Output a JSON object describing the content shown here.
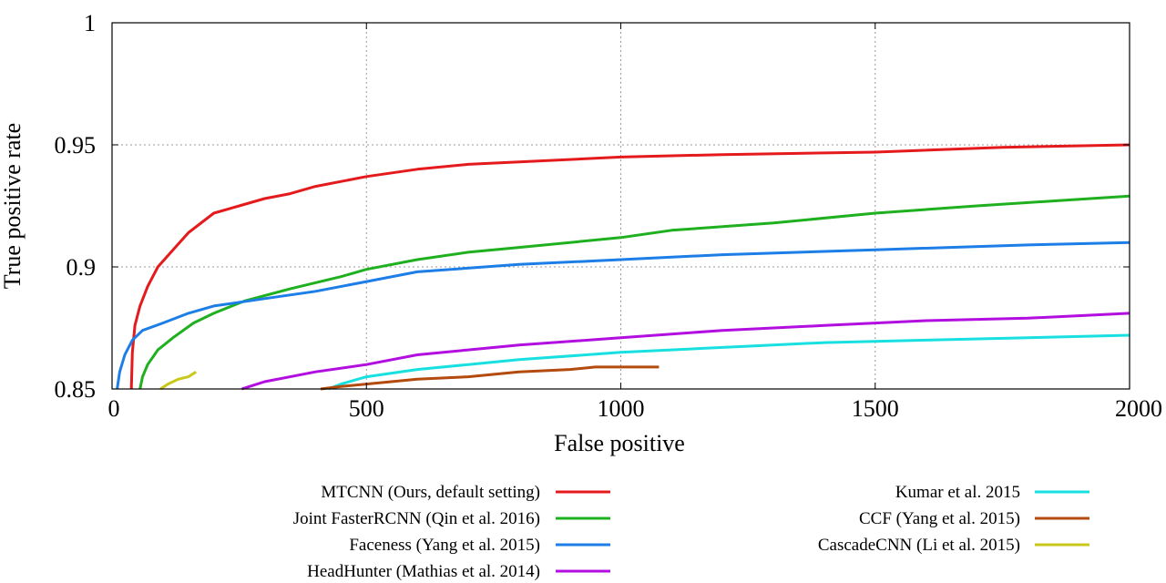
{
  "chart_data": {
    "type": "line",
    "title": "",
    "xlabel": "False positive",
    "ylabel": "True positive rate",
    "xlim": [
      0,
      2000
    ],
    "ylim": [
      0.85,
      1
    ],
    "xticks": [
      0,
      500,
      1000,
      1500,
      2000
    ],
    "yticks": [
      0.85,
      0.9,
      0.95,
      1
    ],
    "ytick_labels": [
      "0.85",
      "0.9",
      "0.95",
      "1"
    ],
    "grid": true,
    "legend_position": "bottom",
    "series": [
      {
        "name": "MTCNN (Ours, default setting)",
        "color": "#e41a1c",
        "points": [
          [
            38,
            0.85
          ],
          [
            40,
            0.865
          ],
          [
            45,
            0.876
          ],
          [
            55,
            0.884
          ],
          [
            70,
            0.892
          ],
          [
            90,
            0.9
          ],
          [
            120,
            0.907
          ],
          [
            150,
            0.914
          ],
          [
            200,
            0.922
          ],
          [
            250,
            0.925
          ],
          [
            300,
            0.928
          ],
          [
            350,
            0.93
          ],
          [
            400,
            0.933
          ],
          [
            500,
            0.937
          ],
          [
            600,
            0.94
          ],
          [
            700,
            0.942
          ],
          [
            800,
            0.943
          ],
          [
            1000,
            0.945
          ],
          [
            1200,
            0.946
          ],
          [
            1500,
            0.947
          ],
          [
            1750,
            0.949
          ],
          [
            2000,
            0.95
          ]
        ]
      },
      {
        "name": "Joint FasterRCNN (Qin et al. 2016)",
        "color": "#1fb01f",
        "points": [
          [
            55,
            0.85
          ],
          [
            60,
            0.855
          ],
          [
            70,
            0.86
          ],
          [
            90,
            0.866
          ],
          [
            120,
            0.871
          ],
          [
            160,
            0.877
          ],
          [
            200,
            0.881
          ],
          [
            260,
            0.886
          ],
          [
            350,
            0.891
          ],
          [
            450,
            0.896
          ],
          [
            500,
            0.899
          ],
          [
            600,
            0.903
          ],
          [
            700,
            0.906
          ],
          [
            800,
            0.908
          ],
          [
            1000,
            0.912
          ],
          [
            1100,
            0.915
          ],
          [
            1300,
            0.918
          ],
          [
            1500,
            0.922
          ],
          [
            1700,
            0.925
          ],
          [
            1850,
            0.927
          ],
          [
            2000,
            0.929
          ]
        ]
      },
      {
        "name": "Faceness (Yang et al. 2015)",
        "color": "#1c7ee6",
        "points": [
          [
            10,
            0.85
          ],
          [
            15,
            0.857
          ],
          [
            25,
            0.864
          ],
          [
            40,
            0.87
          ],
          [
            60,
            0.874
          ],
          [
            100,
            0.877
          ],
          [
            150,
            0.881
          ],
          [
            200,
            0.884
          ],
          [
            300,
            0.887
          ],
          [
            400,
            0.89
          ],
          [
            500,
            0.894
          ],
          [
            600,
            0.898
          ],
          [
            800,
            0.901
          ],
          [
            1000,
            0.903
          ],
          [
            1200,
            0.905
          ],
          [
            1500,
            0.907
          ],
          [
            1800,
            0.909
          ],
          [
            2000,
            0.91
          ]
        ]
      },
      {
        "name": "HeadHunter (Mathias et al. 2014)",
        "color": "#b20ee0",
        "points": [
          [
            255,
            0.85
          ],
          [
            270,
            0.851
          ],
          [
            300,
            0.853
          ],
          [
            400,
            0.857
          ],
          [
            500,
            0.86
          ],
          [
            600,
            0.864
          ],
          [
            700,
            0.866
          ],
          [
            800,
            0.868
          ],
          [
            1000,
            0.871
          ],
          [
            1200,
            0.874
          ],
          [
            1400,
            0.876
          ],
          [
            1600,
            0.878
          ],
          [
            1800,
            0.879
          ],
          [
            2000,
            0.881
          ]
        ]
      },
      {
        "name": "Kumar et al. 2015",
        "color": "#18e0e0",
        "points": [
          [
            425,
            0.85
          ],
          [
            450,
            0.852
          ],
          [
            500,
            0.855
          ],
          [
            600,
            0.858
          ],
          [
            700,
            0.86
          ],
          [
            800,
            0.862
          ],
          [
            1000,
            0.865
          ],
          [
            1200,
            0.867
          ],
          [
            1400,
            0.869
          ],
          [
            1600,
            0.87
          ],
          [
            1800,
            0.871
          ],
          [
            2000,
            0.872
          ]
        ]
      },
      {
        "name": "CCF (Yang et al. 2015)",
        "color": "#b34a0e",
        "points": [
          [
            410,
            0.85
          ],
          [
            450,
            0.851
          ],
          [
            500,
            0.852
          ],
          [
            600,
            0.854
          ],
          [
            700,
            0.855
          ],
          [
            800,
            0.857
          ],
          [
            900,
            0.858
          ],
          [
            950,
            0.859
          ],
          [
            1075,
            0.859
          ]
        ]
      },
      {
        "name": "CascadeCNN (Li et al. 2015)",
        "color": "#c8c81a",
        "points": [
          [
            95,
            0.85
          ],
          [
            110,
            0.852
          ],
          [
            130,
            0.854
          ],
          [
            150,
            0.855
          ],
          [
            165,
            0.857
          ]
        ]
      }
    ]
  }
}
